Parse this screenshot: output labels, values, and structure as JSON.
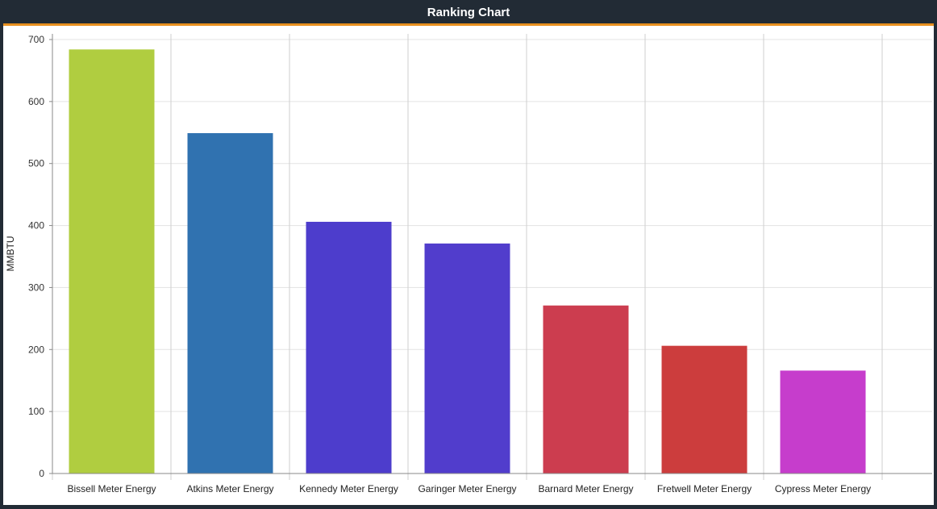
{
  "window": {
    "title": "Ranking Chart"
  },
  "colors": {
    "title_bar": "#222b35",
    "accent": "#e8901f",
    "grid": "#e3e3e3",
    "divider": "#cfcfcf"
  },
  "chart_data": {
    "type": "bar",
    "title": "Ranking Chart",
    "xlabel": "",
    "ylabel": "MMBTU",
    "ylim": [
      0,
      700
    ],
    "yticks": [
      0,
      100,
      200,
      300,
      400,
      500,
      600,
      700
    ],
    "grid": true,
    "legend": "none",
    "categories": [
      "Bissell Meter Energy",
      "Atkins Meter Energy",
      "Kennedy Meter Energy",
      "Garinger Meter Energy",
      "Barnard Meter Energy",
      "Fretwell Meter Energy",
      "Cypress Meter Energy"
    ],
    "values": [
      684,
      549,
      406,
      371,
      271,
      206,
      166
    ],
    "bar_colors": [
      "#b0cd40",
      "#3072b0",
      "#4d3dcc",
      "#513dcc",
      "#cc3d4f",
      "#cc3d3d",
      "#c63dcc"
    ]
  }
}
